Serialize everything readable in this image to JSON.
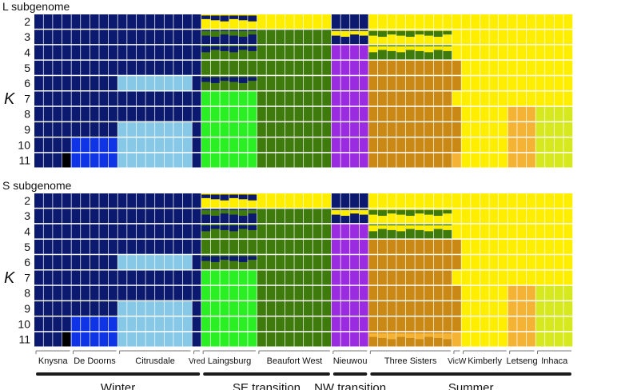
{
  "chart_data": {
    "type": "structure-admixture",
    "yaxis_label": "K",
    "k_values": [
      2,
      3,
      4,
      5,
      6,
      7,
      8,
      9,
      10,
      11
    ],
    "palette": {
      "navy": "#0b1a6e",
      "yellow": "#ffee00",
      "olive": "#3f7a0c",
      "purple": "#9a2be0",
      "orange_brown": "#c98914",
      "light_blue": "#86c8e6",
      "bright_green": "#2aef22",
      "blue": "#0f34e6",
      "light_orange": "#f5b335",
      "yellow_green": "#d6e81e",
      "black": "#000000"
    },
    "populations": [
      {
        "name": "Knysna",
        "region": "Winter",
        "n": 4
      },
      {
        "name": "De Doorns",
        "region": "Winter",
        "n": 5
      },
      {
        "name": "Citrusdale",
        "region": "Winter",
        "n": 8
      },
      {
        "name": "Vred",
        "region": "Winter",
        "n": 1
      },
      {
        "name": "Laingsburg",
        "region": "SE transition",
        "n": 6
      },
      {
        "name": "Beaufort West",
        "region": "SE transition",
        "n": 8
      },
      {
        "name": "Nieuwou",
        "region": "NW transition",
        "n": 4
      },
      {
        "name": "Three Sisters",
        "region": "Summer",
        "n": 9
      },
      {
        "name": "VicW",
        "region": "Summer",
        "n": 1
      },
      {
        "name": "Kimberly",
        "region": "Summer",
        "n": 5
      },
      {
        "name": "Letseng",
        "region": "Summer",
        "n": 3
      },
      {
        "name": "Inhaca",
        "region": "Summer",
        "n": 4
      }
    ],
    "regions": [
      "Winter",
      "SE transition",
      "NW transition",
      "Summer"
    ],
    "panels": [
      {
        "title": "L subgenome",
        "assignments": {
          "Knysna": [
            "navy",
            "navy",
            "navy",
            "navy",
            "navy",
            "navy",
            "navy",
            "navy",
            "navy",
            "navy+black"
          ],
          "De Doorns": [
            "navy",
            "navy",
            "navy",
            "navy",
            "navy",
            "navy",
            "navy",
            "navy",
            "blue",
            "blue"
          ],
          "Citrusdale": [
            "navy",
            "navy",
            "navy",
            "navy",
            "light_blue",
            "navy",
            "navy",
            "light_blue",
            "light_blue",
            "light_blue"
          ],
          "Vred": [
            "navy",
            "navy",
            "navy",
            "navy",
            "navy",
            "navy",
            "navy",
            "navy",
            "navy",
            "navy"
          ],
          "Laingsburg": [
            "yellow+navy",
            "navy+olive",
            "olive+navy",
            "olive",
            "olive+navy",
            "bright_green",
            "bright_green",
            "bright_green",
            "bright_green",
            "bright_green"
          ],
          "Beaufort West": [
            "yellow",
            "olive",
            "olive",
            "olive",
            "olive",
            "olive",
            "olive",
            "olive",
            "olive",
            "olive"
          ],
          "Nieuwou": [
            "navy",
            "navy+yellow",
            "purple",
            "purple",
            "purple",
            "purple",
            "purple",
            "purple",
            "purple",
            "purple"
          ],
          "Three Sisters": [
            "yellow",
            "yellow+olive",
            "olive+yellow",
            "orange_brown",
            "orange_brown",
            "orange_brown",
            "orange_brown",
            "orange_brown",
            "orange_brown",
            "orange_brown"
          ],
          "VicW": [
            "yellow",
            "yellow",
            "yellow",
            "orange_brown",
            "orange_brown",
            "yellow",
            "orange_brown",
            "orange_brown",
            "orange_brown",
            "light_orange"
          ],
          "Kimberly": [
            "yellow",
            "yellow",
            "yellow",
            "yellow",
            "yellow",
            "yellow",
            "yellow",
            "yellow",
            "yellow",
            "yellow"
          ],
          "Letseng": [
            "yellow",
            "yellow",
            "yellow",
            "yellow",
            "yellow",
            "yellow",
            "light_orange",
            "light_orange",
            "light_orange",
            "light_orange"
          ],
          "Inhaca": [
            "yellow",
            "yellow",
            "yellow",
            "yellow",
            "yellow",
            "yellow",
            "yellow_green",
            "yellow_green",
            "yellow_green",
            "yellow_green"
          ]
        }
      },
      {
        "title": "S subgenome",
        "assignments": {
          "Knysna": [
            "navy",
            "navy",
            "navy",
            "navy",
            "navy",
            "navy",
            "navy",
            "navy",
            "navy",
            "navy+black"
          ],
          "De Doorns": [
            "navy",
            "navy",
            "navy",
            "navy",
            "navy",
            "navy",
            "navy",
            "navy",
            "blue",
            "blue"
          ],
          "Citrusdale": [
            "navy",
            "navy",
            "navy",
            "navy",
            "light_blue",
            "navy",
            "navy",
            "light_blue",
            "light_blue",
            "light_blue"
          ],
          "Vred": [
            "navy",
            "navy",
            "navy",
            "navy",
            "navy",
            "navy",
            "navy",
            "navy",
            "navy",
            "navy"
          ],
          "Laingsburg": [
            "yellow+navy",
            "navy+olive",
            "olive+navy",
            "olive",
            "olive+navy",
            "bright_green",
            "bright_green",
            "bright_green",
            "bright_green",
            "bright_green"
          ],
          "Beaufort West": [
            "yellow",
            "olive",
            "olive",
            "olive",
            "olive",
            "olive",
            "olive",
            "olive",
            "olive",
            "olive"
          ],
          "Nieuwou": [
            "navy",
            "navy+yellow",
            "purple",
            "purple",
            "purple",
            "purple",
            "purple",
            "purple",
            "purple",
            "purple"
          ],
          "Three Sisters": [
            "yellow",
            "yellow+olive",
            "olive+yellow",
            "orange_brown",
            "orange_brown",
            "orange_brown",
            "orange_brown",
            "orange_brown",
            "orange_brown",
            "orange_brown+light_orange"
          ],
          "VicW": [
            "yellow",
            "yellow",
            "yellow",
            "orange_brown",
            "orange_brown",
            "yellow",
            "orange_brown",
            "orange_brown",
            "orange_brown",
            "light_orange"
          ],
          "Kimberly": [
            "yellow",
            "yellow",
            "yellow",
            "yellow",
            "yellow",
            "yellow",
            "yellow",
            "yellow",
            "yellow",
            "yellow"
          ],
          "Letseng": [
            "yellow",
            "yellow",
            "yellow",
            "yellow",
            "yellow",
            "yellow",
            "light_orange",
            "light_orange",
            "light_orange",
            "light_orange"
          ],
          "Inhaca": [
            "yellow",
            "yellow",
            "yellow",
            "yellow",
            "yellow",
            "yellow",
            "yellow_green",
            "yellow_green",
            "yellow_green",
            "yellow_green"
          ]
        }
      }
    ]
  }
}
